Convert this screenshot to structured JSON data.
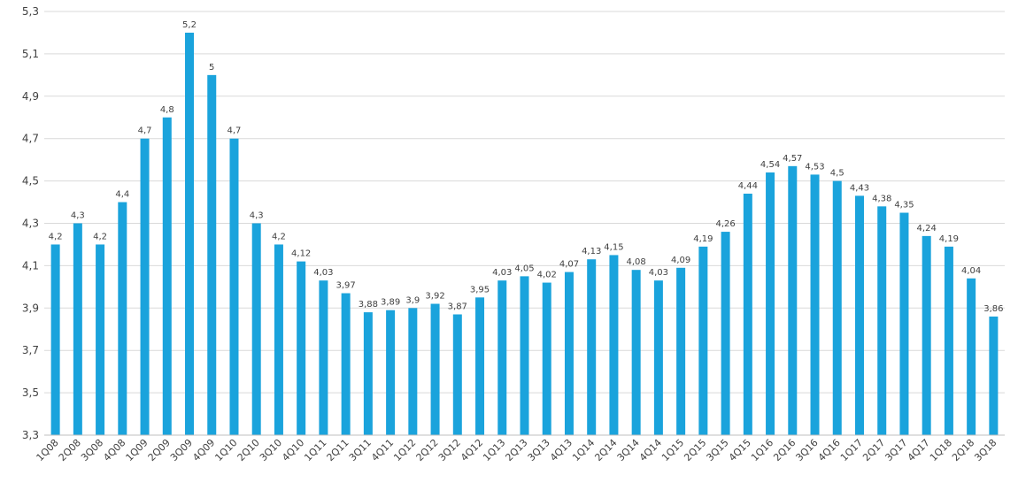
{
  "chart_data": {
    "type": "bar",
    "categories": [
      "1Q08",
      "2Q08",
      "3Q08",
      "4Q08",
      "1Q09",
      "2Q09",
      "3Q09",
      "4Q09",
      "1Q10",
      "2Q10",
      "3Q10",
      "4Q10",
      "1Q11",
      "2Q11",
      "3Q11",
      "4Q11",
      "1Q12",
      "2Q12",
      "3Q12",
      "4Q12",
      "1Q13",
      "2Q13",
      "3Q13",
      "4Q13",
      "1Q14",
      "2Q14",
      "3Q14",
      "4Q14",
      "1Q15",
      "2Q15",
      "3Q15",
      "4Q15",
      "1Q16",
      "2Q16",
      "3Q16",
      "4Q16",
      "1Q17",
      "2Q17",
      "3Q17",
      "4Q17",
      "1Q18",
      "2Q18",
      "3Q18"
    ],
    "values": [
      4.2,
      4.3,
      4.2,
      4.4,
      4.7,
      4.8,
      5.2,
      5,
      4.7,
      4.3,
      4.2,
      4.12,
      4.03,
      3.97,
      3.88,
      3.89,
      3.9,
      3.92,
      3.87,
      3.95,
      4.03,
      4.05,
      4.02,
      4.07,
      4.13,
      4.15,
      4.08,
      4.03,
      4.09,
      4.19,
      4.26,
      4.44,
      4.54,
      4.57,
      4.53,
      4.5,
      4.43,
      4.38,
      4.35,
      4.24,
      4.19,
      4.04,
      3.86
    ],
    "data_labels": [
      "4,2",
      "4,3",
      "4,2",
      "4,4",
      "4,7",
      "4,8",
      "5,2",
      "5",
      "4,7",
      "4,3",
      "4,2",
      "4,12",
      "4,03",
      "3,97",
      "3,88",
      "3,89",
      "3,9",
      "3,92",
      "3,87",
      "3,95",
      "4,03",
      "4,05",
      "4,02",
      "4,07",
      "4,13",
      "4,15",
      "4,08",
      "4,03",
      "4,09",
      "4,19",
      "4,26",
      "4,44",
      "4,54",
      "4,57",
      "4,53",
      "4,5",
      "4,43",
      "4,38",
      "4,35",
      "4,24",
      "4,19",
      "4,04",
      "3,86"
    ],
    "y_ticks": [
      3.3,
      3.5,
      3.7,
      3.9,
      4.1,
      4.3,
      4.5,
      4.7,
      4.9,
      5.1,
      5.3
    ],
    "y_tick_labels": [
      "3,3",
      "3,5",
      "3,7",
      "3,9",
      "4,1",
      "4,3",
      "4,5",
      "4,7",
      "4,9",
      "5,1",
      "5,3"
    ],
    "ylim": [
      3.3,
      5.3
    ],
    "grid": true,
    "bar_color": "#1aa3dc",
    "title": "",
    "xlabel": "",
    "ylabel": ""
  }
}
